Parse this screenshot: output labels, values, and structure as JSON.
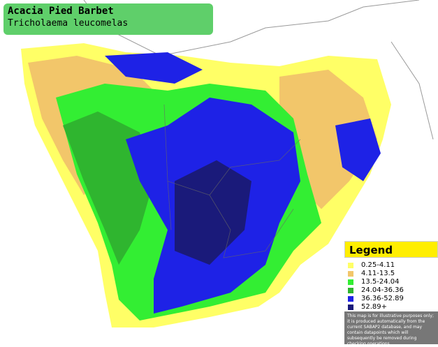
{
  "header": {
    "title": "Acacia Pied Barbet",
    "subtitle": "Tricholaema leucomelas"
  },
  "legend": {
    "title": "Legend",
    "items": [
      {
        "label": "0.25-4.11",
        "color": "#ffff66"
      },
      {
        "label": "4.11-13.5",
        "color": "#f2c66a"
      },
      {
        "label": "13.5-24.04",
        "color": "#33ee33"
      },
      {
        "label": "24.04-36.36",
        "color": "#2fb52f"
      },
      {
        "label": "36.36-52.89",
        "color": "#1e22e6"
      },
      {
        "label": "52.89+",
        "color": "#1a1a7a"
      }
    ]
  },
  "disclaimer": "This map is for illustrative purposes only; it is produced automatically from the current SABAP2 database, and may contain datapoints which will subsequently be removed during checking operations."
}
